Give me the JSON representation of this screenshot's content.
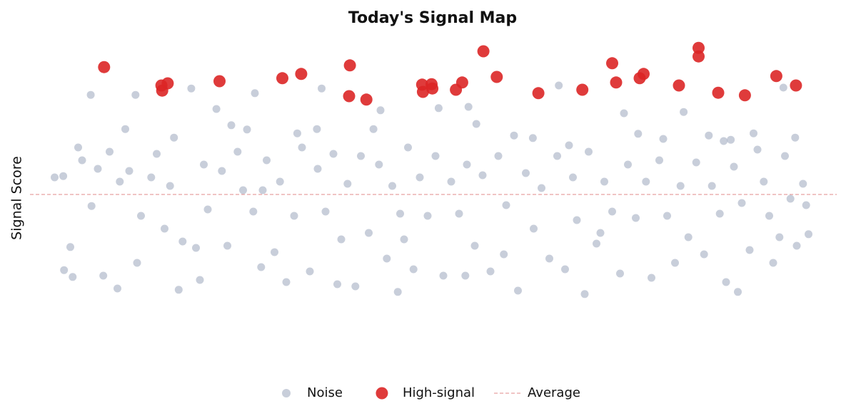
{
  "chart_data": {
    "type": "scatter",
    "title": "Today's Signal Map",
    "ylabel": "Signal Score",
    "xlim": [
      0,
      100
    ],
    "ylim": [
      -4,
      4
    ],
    "grid": false,
    "legend": "bottom",
    "series": [
      {
        "name": "Noise",
        "color": "#a3adc2",
        "x": [
          2.6,
          6.1,
          11.8,
          18.9,
          27,
          35.5,
          65.7,
          94.3,
          97.5,
          69,
          9.5,
          17.3,
          45.2,
          88.5,
          3.8,
          2.7,
          3.5,
          6.2,
          7.7,
          10.5,
          16.7,
          22.1,
          24,
          26,
          32.4,
          34.9,
          42.1,
          43,
          50.4,
          54.2,
          55.2,
          60,
          62.4,
          74,
          75.8,
          81.6,
          84.8,
          87.6,
          90.5,
          95.8,
          91,
          4.5,
          5,
          7,
          8.5,
          9.8,
          11,
          12.5,
          13.8,
          14.5,
          15.5,
          16.2,
          17.8,
          19.5,
          20.5,
          21,
          22.8,
          23.5,
          24.8,
          25.5,
          26.8,
          27.8,
          28.5,
          29.5,
          30.2,
          31,
          32,
          33,
          34,
          35,
          36,
          37,
          38,
          38.8,
          39.8,
          40.5,
          41.5,
          42.8,
          43.8,
          44.5,
          45.5,
          46.5,
          47.2,
          48,
          49,
          50,
          51,
          52,
          53,
          54,
          55,
          56,
          57,
          58,
          59,
          60.5,
          61.5,
          62.5,
          63.5,
          64.5,
          65.5,
          66.5,
          67.5,
          68,
          69.5,
          70.5,
          71.5,
          72.5,
          73.5,
          74.5,
          75.5,
          76.8,
          77.5,
          78.5,
          79.5,
          80.5,
          81.2,
          82.2,
          83.2,
          84.2,
          85.2,
          86.2,
          87,
          88,
          89,
          90,
          91.8,
          92.5,
          93,
          94.5,
          95.2,
          96,
          96.8,
          97.2,
          1.5,
          12,
          20,
          28,
          37.5,
          46,
          53.8,
          58.7,
          67,
          71,
          79,
          86.7,
          93.8
        ],
        "values": [
          0.43,
          2.33,
          2.33,
          2.48,
          2.37,
          2.48,
          2.55,
          2.5,
          -0.93,
          -2.33,
          -2.2,
          -2.23,
          -2.28,
          -2.28,
          -1.93,
          -1.77,
          -1.23,
          -0.27,
          -1.9,
          1.53,
          1.33,
          2.0,
          1.62,
          1.52,
          1.43,
          1.53,
          1.53,
          1.97,
          2.02,
          2.05,
          1.65,
          1.38,
          1.32,
          1.9,
          1.42,
          1.93,
          1.38,
          1.28,
          1.43,
          1.33,
          1.05,
          1.1,
          0.8,
          0.6,
          1.0,
          0.3,
          0.55,
          -0.5,
          0.4,
          0.95,
          -0.8,
          0.2,
          -1.1,
          -1.25,
          0.7,
          -0.35,
          0.55,
          -1.2,
          1.0,
          0.1,
          -0.4,
          -1.7,
          0.8,
          -1.35,
          0.3,
          -2.05,
          -0.5,
          1.1,
          -1.8,
          0.6,
          -0.4,
          0.95,
          -1.05,
          0.25,
          -2.15,
          0.9,
          -0.9,
          0.7,
          -1.5,
          0.2,
          -0.45,
          1.1,
          -1.75,
          0.4,
          -0.5,
          0.9,
          -1.9,
          0.3,
          -0.45,
          0.7,
          -1.2,
          0.45,
          -1.8,
          0.9,
          -0.25,
          -2.25,
          0.5,
          -0.8,
          0.15,
          -1.5,
          0.9,
          -1.75,
          0.4,
          -0.6,
          1.0,
          -1.15,
          0.3,
          -0.4,
          -1.85,
          0.7,
          -0.55,
          0.3,
          -1.95,
          0.8,
          -0.5,
          -1.6,
          0.2,
          -1.0,
          0.75,
          -1.4,
          0.2,
          -0.45,
          -2.05,
          0.65,
          -0.2,
          -1.3,
          0.3,
          -0.5,
          -1.6,
          0.9,
          -0.1,
          -1.2,
          0.25,
          -0.25,
          0.4,
          -1.6,
          -2.0,
          0.1,
          -2.1,
          -1.05,
          -1.9,
          -1.4,
          1.15,
          -0.9,
          1.3,
          1.25,
          -1.0
        ]
      },
      {
        "name": "High-signal",
        "color": "#dc2626",
        "x": [
          7.8,
          15.1,
          15.2,
          15.9,
          22.5,
          30.5,
          32.9,
          39.1,
          39.0,
          41.2,
          48.3,
          48.4,
          49.5,
          49.6,
          52.6,
          53.4,
          56.1,
          57.8,
          63.1,
          68.7,
          72.5,
          73.0,
          76.0,
          76.5,
          81.0,
          83.5,
          83.5,
          86.0,
          89.4,
          93.4,
          95.9
        ],
        "values": [
          2.98,
          2.55,
          2.43,
          2.6,
          2.65,
          2.72,
          2.82,
          3.02,
          2.3,
          2.22,
          2.57,
          2.4,
          2.58,
          2.48,
          2.45,
          2.62,
          3.35,
          2.75,
          2.37,
          2.45,
          3.07,
          2.62,
          2.72,
          2.82,
          2.55,
          3.43,
          3.23,
          2.38,
          2.32,
          2.77,
          2.55
        ]
      }
    ],
    "reference_lines": [
      {
        "name": "Average",
        "value": 0,
        "color": "#e8a0a0"
      }
    ]
  }
}
